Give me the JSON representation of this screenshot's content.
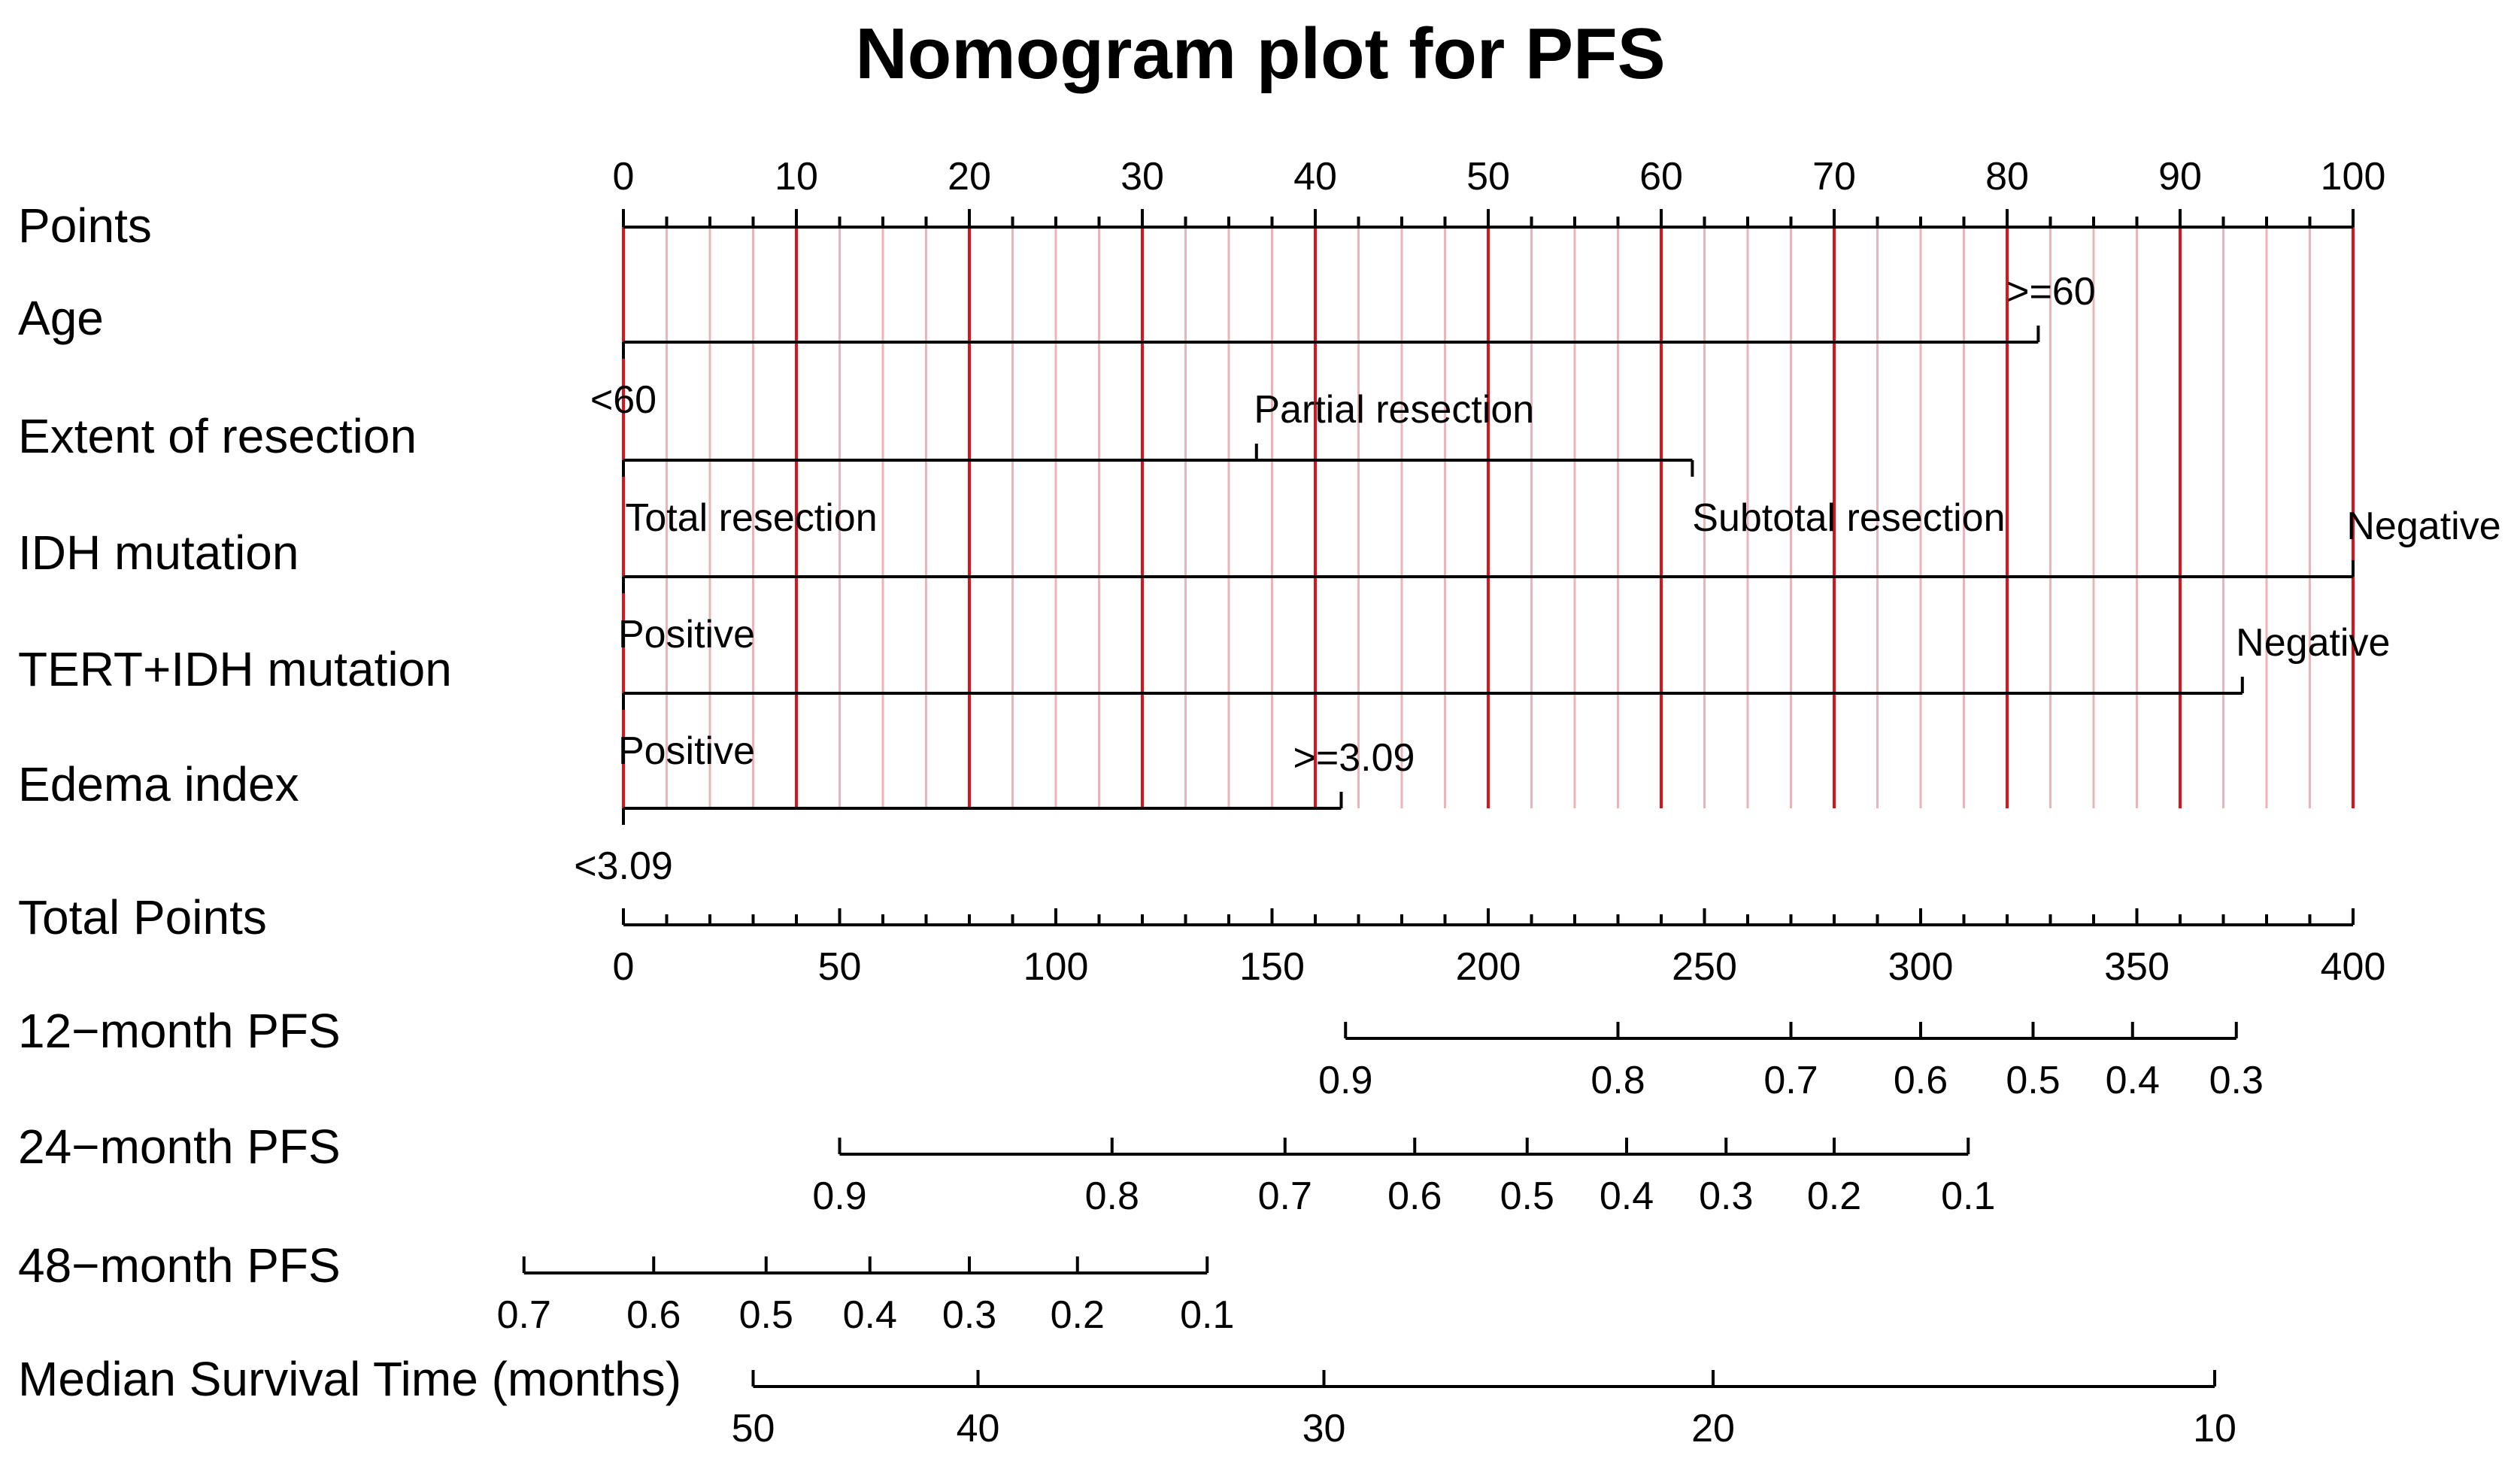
{
  "chart_data": {
    "type": "nomogram",
    "title": "Nomogram plot for PFS",
    "points_axis": {
      "label": "Points",
      "range": [
        0,
        100
      ],
      "tick_labels": [
        "0",
        "10",
        "20",
        "30",
        "40",
        "50",
        "60",
        "70",
        "80",
        "90",
        "100"
      ],
      "tick_values": [
        0,
        10,
        20,
        30,
        40,
        50,
        60,
        70,
        80,
        90,
        100
      ]
    },
    "predictors": [
      {
        "label": "Age",
        "levels": [
          {
            "name": "<60",
            "points": 0
          },
          {
            "name": ">=60",
            "points": 81.8
          }
        ]
      },
      {
        "label": "Extent of resection",
        "levels": [
          {
            "name": "Total resection",
            "points": 0
          },
          {
            "name": "Partial resection",
            "points": 36.6
          },
          {
            "name": "Subtotal resection",
            "points": 61.8
          }
        ]
      },
      {
        "label": "IDH mutation",
        "levels": [
          {
            "name": "Positive",
            "points": 0
          },
          {
            "name": "Negative",
            "points": 100
          }
        ]
      },
      {
        "label": "TERT+IDH mutation",
        "levels": [
          {
            "name": "Positive",
            "points": 0
          },
          {
            "name": "Negative",
            "points": 93.6
          }
        ]
      },
      {
        "label": "Edema index",
        "levels": [
          {
            "name": "<3.09",
            "points": 0
          },
          {
            "name": ">=3.09",
            "points": 41.5
          }
        ]
      }
    ],
    "total_points_axis": {
      "label": "Total Points",
      "range": [
        0,
        400
      ],
      "tick_labels": [
        "0",
        "50",
        "100",
        "150",
        "200",
        "250",
        "300",
        "350",
        "400"
      ],
      "tick_values": [
        0,
        50,
        100,
        150,
        200,
        250,
        300,
        350,
        400
      ]
    },
    "outcome_axes": [
      {
        "label": "12−month PFS",
        "ticks": [
          {
            "text": "0.9",
            "total_points": 167
          },
          {
            "text": "0.8",
            "total_points": 230
          },
          {
            "text": "0.7",
            "total_points": 270
          },
          {
            "text": "0.6",
            "total_points": 300
          },
          {
            "text": "0.5",
            "total_points": 326
          },
          {
            "text": "0.4",
            "total_points": 349
          },
          {
            "text": "0.3",
            "total_points": 373
          }
        ]
      },
      {
        "label": "24−month PFS",
        "ticks": [
          {
            "text": "0.9",
            "total_points": 50
          },
          {
            "text": "0.8",
            "total_points": 113
          },
          {
            "text": "0.7",
            "total_points": 153
          },
          {
            "text": "0.6",
            "total_points": 183
          },
          {
            "text": "0.5",
            "total_points": 209
          },
          {
            "text": "0.4",
            "total_points": 232
          },
          {
            "text": "0.3",
            "total_points": 255
          },
          {
            "text": "0.2",
            "total_points": 280
          },
          {
            "text": "0.1",
            "total_points": 311
          }
        ]
      },
      {
        "label": "48−month PFS",
        "ticks": [
          {
            "text": "0.7",
            "total_points": -23
          },
          {
            "text": "0.6",
            "total_points": 7
          },
          {
            "text": "0.5",
            "total_points": 33
          },
          {
            "text": "0.4",
            "total_points": 57
          },
          {
            "text": "0.3",
            "total_points": 80
          },
          {
            "text": "0.2",
            "total_points": 105
          },
          {
            "text": "0.1",
            "total_points": 135
          }
        ]
      },
      {
        "label": "Median Survival Time (months)",
        "ticks": [
          {
            "text": "50",
            "total_points": 30
          },
          {
            "text": "40",
            "total_points": 82
          },
          {
            "text": "30",
            "total_points": 162
          },
          {
            "text": "20",
            "total_points": 252
          },
          {
            "text": "10",
            "total_points": 368
          }
        ]
      }
    ]
  }
}
